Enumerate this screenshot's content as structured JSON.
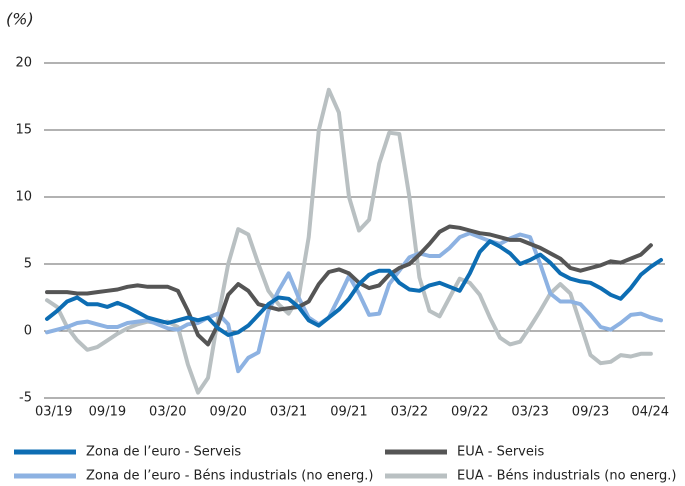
{
  "chart_data": {
    "type": "line",
    "y_label": "(%)",
    "categories": [
      "03/19",
      null,
      null,
      null,
      null,
      null,
      "09/19",
      null,
      null,
      null,
      null,
      null,
      "03/20",
      null,
      null,
      null,
      null,
      null,
      "09/20",
      null,
      null,
      null,
      null,
      null,
      "03/21",
      null,
      null,
      null,
      null,
      null,
      "09/21",
      null,
      null,
      null,
      null,
      null,
      "03/22",
      null,
      null,
      null,
      null,
      null,
      "09/22",
      null,
      null,
      null,
      null,
      null,
      "03/23",
      null,
      null,
      null,
      null,
      null,
      "09/23",
      null,
      null,
      null,
      null,
      null,
      null,
      "04/24"
    ],
    "ylim": [
      -5,
      20
    ],
    "yticks": [
      -5,
      0,
      5,
      10,
      15,
      20
    ],
    "grid": true,
    "series": [
      {
        "name": "Zona de l’euro - Serveis",
        "color": "#0d6db3",
        "values": [
          0.9,
          1.5,
          2.2,
          2.5,
          2.0,
          2.0,
          1.8,
          2.1,
          1.8,
          1.4,
          1.0,
          0.8,
          0.6,
          0.8,
          1.0,
          0.8,
          1.0,
          0.2,
          -0.3,
          -0.1,
          0.4,
          1.2,
          2.0,
          2.5,
          2.4,
          1.8,
          0.8,
          0.4,
          1.0,
          1.6,
          2.4,
          3.5,
          4.2,
          4.5,
          4.5,
          3.6,
          3.1,
          3.0,
          3.4,
          3.6,
          3.3,
          3.0,
          4.3,
          5.9,
          6.7,
          6.3,
          5.8,
          5.0,
          5.3,
          5.7,
          5.1,
          4.3,
          3.9,
          3.7,
          3.6,
          3.2,
          2.7,
          2.4,
          3.2,
          4.2,
          4.8,
          5.3
        ]
      },
      {
        "name": "EUA - Serveis",
        "color": "#555555",
        "values": [
          2.9,
          2.9,
          2.9,
          2.8,
          2.8,
          2.9,
          3.0,
          3.1,
          3.3,
          3.4,
          3.3,
          3.3,
          3.3,
          3.0,
          1.5,
          -0.3,
          -1.0,
          0.5,
          2.7,
          3.5,
          3.0,
          2.0,
          1.8,
          1.6,
          1.7,
          1.8,
          2.2,
          3.5,
          4.4,
          4.6,
          4.3,
          3.6,
          3.2,
          3.4,
          4.2,
          4.7,
          5.0,
          5.7,
          6.5,
          7.4,
          7.8,
          7.7,
          7.5,
          7.3,
          7.2,
          7.0,
          6.8,
          6.8,
          6.5,
          6.2,
          5.8,
          5.4,
          4.7,
          4.5,
          4.7,
          4.9,
          5.2,
          5.1,
          5.4,
          5.7,
          6.4,
          null
        ]
      },
      {
        "name": "Zona de l’euro - Béns industrials (no energ.)",
        "color": "#8db2e2",
        "values": [
          -0.1,
          0.1,
          0.3,
          0.6,
          0.7,
          0.5,
          0.3,
          0.3,
          0.6,
          0.7,
          0.8,
          0.5,
          0.2,
          0.1,
          0.5,
          0.6,
          1.0,
          1.3,
          0.5,
          -3.0,
          -2.0,
          -1.6,
          1.5,
          3.0,
          4.3,
          2.5,
          1.0,
          0.5,
          1.0,
          2.5,
          4.1,
          2.8,
          1.2,
          1.3,
          3.5,
          4.5,
          5.5,
          5.8,
          5.6,
          5.6,
          6.2,
          7.0,
          7.3,
          7.0,
          6.7,
          6.5,
          6.9,
          7.2,
          7.0,
          5.0,
          2.8,
          2.2,
          2.2,
          2.0,
          1.2,
          0.3,
          0.1,
          0.6,
          1.2,
          1.3,
          1.0,
          0.8
        ]
      },
      {
        "name": "EUA - Béns industrials (no energ.)",
        "color": "#b9c0c2",
        "values": [
          2.3,
          1.8,
          0.3,
          -0.7,
          -1.4,
          -1.2,
          -0.7,
          -0.2,
          0.2,
          0.5,
          0.7,
          0.6,
          0.7,
          0.3,
          -2.5,
          -4.6,
          -3.5,
          1.0,
          5.0,
          7.6,
          7.2,
          5.0,
          3.0,
          2.0,
          1.3,
          2.5,
          7.0,
          15.0,
          18.0,
          16.3,
          10.0,
          7.5,
          8.3,
          12.5,
          14.8,
          14.7,
          10.0,
          4.0,
          1.5,
          1.1,
          2.5,
          3.9,
          3.6,
          2.7,
          1.0,
          -0.5,
          -1.0,
          -0.8,
          0.3,
          1.5,
          2.8,
          3.5,
          2.8,
          0.5,
          -1.8,
          -2.4,
          -2.3,
          -1.8,
          -1.9,
          -1.7,
          -1.7,
          null
        ]
      }
    ]
  }
}
